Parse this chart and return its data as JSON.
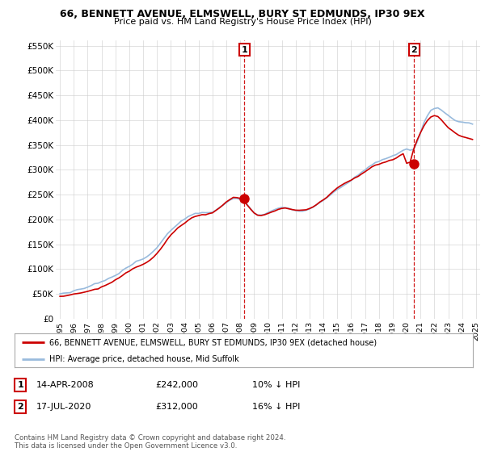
{
  "title": "66, BENNETT AVENUE, ELMSWELL, BURY ST EDMUNDS, IP30 9EX",
  "subtitle": "Price paid vs. HM Land Registry's House Price Index (HPI)",
  "legend_line1": "66, BENNETT AVENUE, ELMSWELL, BURY ST EDMUNDS, IP30 9EX (detached house)",
  "legend_line2": "HPI: Average price, detached house, Mid Suffolk",
  "annotation1_label": "1",
  "annotation1_date": "14-APR-2008",
  "annotation1_price": "£242,000",
  "annotation1_hpi": "10% ↓ HPI",
  "annotation2_label": "2",
  "annotation2_date": "17-JUL-2020",
  "annotation2_price": "£312,000",
  "annotation2_hpi": "16% ↓ HPI",
  "footer": "Contains HM Land Registry data © Crown copyright and database right 2024.\nThis data is licensed under the Open Government Licence v3.0.",
  "red_color": "#cc0000",
  "blue_color": "#99bbdd",
  "background_color": "#ffffff",
  "grid_color": "#cccccc",
  "yticks": [
    0,
    50000,
    100000,
    150000,
    200000,
    250000,
    300000,
    350000,
    400000,
    450000,
    500000,
    550000
  ],
  "purchase1_year": 2008.29,
  "purchase1_value": 242000,
  "purchase2_year": 2020.54,
  "purchase2_value": 312000,
  "hpi_years": [
    1995.0,
    1995.25,
    1995.5,
    1995.75,
    1996.0,
    1996.25,
    1996.5,
    1996.75,
    1997.0,
    1997.25,
    1997.5,
    1997.75,
    1998.0,
    1998.25,
    1998.5,
    1998.75,
    1999.0,
    1999.25,
    1999.5,
    1999.75,
    2000.0,
    2000.25,
    2000.5,
    2000.75,
    2001.0,
    2001.25,
    2001.5,
    2001.75,
    2002.0,
    2002.25,
    2002.5,
    2002.75,
    2003.0,
    2003.25,
    2003.5,
    2003.75,
    2004.0,
    2004.25,
    2004.5,
    2004.75,
    2005.0,
    2005.25,
    2005.5,
    2005.75,
    2006.0,
    2006.25,
    2006.5,
    2006.75,
    2007.0,
    2007.25,
    2007.5,
    2007.75,
    2008.0,
    2008.25,
    2008.5,
    2008.75,
    2009.0,
    2009.25,
    2009.5,
    2009.75,
    2010.0,
    2010.25,
    2010.5,
    2010.75,
    2011.0,
    2011.25,
    2011.5,
    2011.75,
    2012.0,
    2012.25,
    2012.5,
    2012.75,
    2013.0,
    2013.25,
    2013.5,
    2013.75,
    2014.0,
    2014.25,
    2014.5,
    2014.75,
    2015.0,
    2015.25,
    2015.5,
    2015.75,
    2016.0,
    2016.25,
    2016.5,
    2016.75,
    2017.0,
    2017.25,
    2017.5,
    2017.75,
    2018.0,
    2018.25,
    2018.5,
    2018.75,
    2019.0,
    2019.25,
    2019.5,
    2019.75,
    2020.0,
    2020.25,
    2020.5,
    2020.75,
    2021.0,
    2021.25,
    2021.5,
    2021.75,
    2022.0,
    2022.25,
    2022.5,
    2022.75,
    2023.0,
    2023.25,
    2023.5,
    2023.75,
    2024.0,
    2024.25,
    2024.5,
    2024.75
  ],
  "hpi_values": [
    50000,
    51000,
    52000,
    53000,
    55000,
    56000,
    57000,
    58000,
    60000,
    62000,
    65000,
    67000,
    70000,
    72000,
    75000,
    77000,
    82000,
    86000,
    91000,
    96000,
    100000,
    104000,
    107000,
    110000,
    113000,
    117000,
    122000,
    128000,
    135000,
    143000,
    153000,
    163000,
    172000,
    180000,
    187000,
    193000,
    198000,
    203000,
    207000,
    210000,
    212000,
    214000,
    215000,
    216000,
    218000,
    222000,
    227000,
    232000,
    237000,
    241000,
    244000,
    244000,
    242000,
    238000,
    230000,
    222000,
    215000,
    211000,
    210000,
    212000,
    215000,
    218000,
    221000,
    223000,
    224000,
    224000,
    223000,
    222000,
    221000,
    221000,
    222000,
    223000,
    225000,
    228000,
    232000,
    237000,
    242000,
    248000,
    254000,
    260000,
    265000,
    270000,
    274000,
    278000,
    282000,
    287000,
    292000,
    297000,
    302000,
    307000,
    311000,
    314000,
    316000,
    318000,
    320000,
    322000,
    325000,
    328000,
    332000,
    336000,
    340000,
    338000,
    340000,
    355000,
    375000,
    395000,
    408000,
    418000,
    422000,
    422000,
    418000,
    412000,
    406000,
    402000,
    398000,
    396000,
    395000,
    394000,
    393000,
    392000
  ],
  "price_years": [
    1995.0,
    1995.25,
    1995.5,
    1995.75,
    1996.0,
    1996.25,
    1996.5,
    1996.75,
    1997.0,
    1997.25,
    1997.5,
    1997.75,
    1998.0,
    1998.25,
    1998.5,
    1998.75,
    1999.0,
    1999.25,
    1999.5,
    1999.75,
    2000.0,
    2000.25,
    2000.5,
    2000.75,
    2001.0,
    2001.25,
    2001.5,
    2001.75,
    2002.0,
    2002.25,
    2002.5,
    2002.75,
    2003.0,
    2003.25,
    2003.5,
    2003.75,
    2004.0,
    2004.25,
    2004.5,
    2004.75,
    2005.0,
    2005.25,
    2005.5,
    2005.75,
    2006.0,
    2006.25,
    2006.5,
    2006.75,
    2007.0,
    2007.25,
    2007.5,
    2007.75,
    2008.0,
    2008.25,
    2008.5,
    2008.75,
    2009.0,
    2009.25,
    2009.5,
    2009.75,
    2010.0,
    2010.25,
    2010.5,
    2010.75,
    2011.0,
    2011.25,
    2011.5,
    2011.75,
    2012.0,
    2012.25,
    2012.5,
    2012.75,
    2013.0,
    2013.25,
    2013.5,
    2013.75,
    2014.0,
    2014.25,
    2014.5,
    2014.75,
    2015.0,
    2015.25,
    2015.5,
    2015.75,
    2016.0,
    2016.25,
    2016.5,
    2016.75,
    2017.0,
    2017.25,
    2017.5,
    2017.75,
    2018.0,
    2018.25,
    2018.5,
    2018.75,
    2019.0,
    2019.25,
    2019.5,
    2019.75,
    2020.0,
    2020.25,
    2020.5,
    2020.75,
    2021.0,
    2021.25,
    2021.5,
    2021.75,
    2022.0,
    2022.25,
    2022.5,
    2022.75,
    2023.0,
    2023.25,
    2023.5,
    2023.75,
    2024.0,
    2024.25,
    2024.5,
    2024.75
  ],
  "price_values": [
    45000,
    46000,
    47000,
    48000,
    50000,
    51000,
    52000,
    54000,
    56000,
    58000,
    61000,
    63000,
    66000,
    68000,
    71000,
    74000,
    78000,
    82000,
    87000,
    92000,
    96000,
    100000,
    103000,
    106000,
    109000,
    113000,
    118000,
    124000,
    131000,
    139000,
    149000,
    159000,
    168000,
    176000,
    183000,
    189000,
    194000,
    199000,
    203000,
    206000,
    208000,
    210000,
    211000,
    212000,
    214000,
    218000,
    223000,
    228000,
    233000,
    237000,
    240000,
    240000,
    238000,
    234000,
    226000,
    218000,
    211000,
    207000,
    206000,
    208000,
    211000,
    214000,
    217000,
    219000,
    220000,
    220000,
    219000,
    218000,
    217000,
    217000,
    218000,
    219000,
    221000,
    224000,
    228000,
    233000,
    238000,
    244000,
    250000,
    256000,
    261000,
    266000,
    270000,
    274000,
    278000,
    283000,
    288000,
    293000,
    298000,
    303000,
    307000,
    310000,
    312000,
    314000,
    316000,
    318000,
    320000,
    323000,
    327000,
    331000,
    312000,
    314000,
    340000,
    360000,
    375000,
    388000,
    398000,
    405000,
    408000,
    406000,
    400000,
    393000,
    386000,
    380000,
    375000,
    372000,
    370000,
    368000,
    366000,
    364000
  ]
}
